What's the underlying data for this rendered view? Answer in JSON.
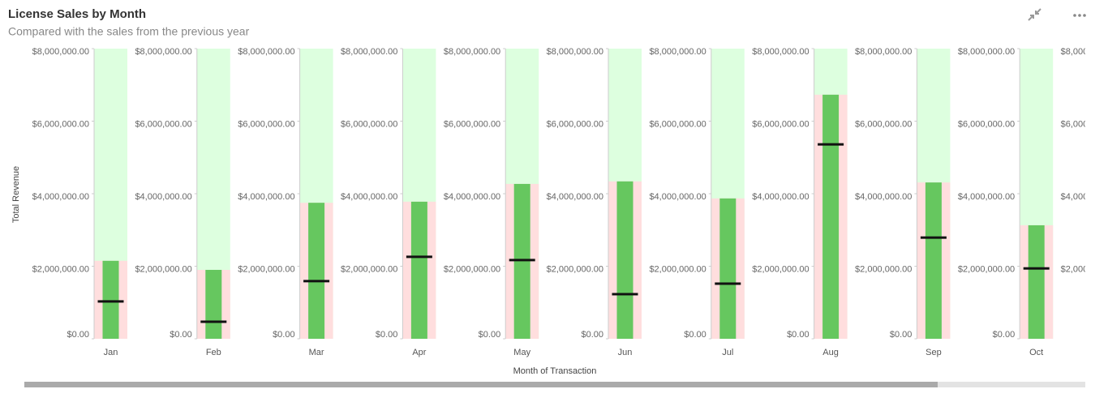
{
  "chart_data": {
    "type": "bullet",
    "title": "License Sales by Month",
    "subtitle": "Compared with the sales from the previous year",
    "x_label": "Month of Transaction",
    "y_label": "Total Revenue",
    "categories": [
      "Jan",
      "Feb",
      "Mar",
      "Apr",
      "May",
      "Jun",
      "Jul",
      "Aug",
      "Sep",
      "Oct"
    ],
    "values": [
      2150000,
      1900000,
      3750000,
      3780000,
      4270000,
      4340000,
      3870000,
      6730000,
      4310000,
      3130000
    ],
    "targets": [
      1030000,
      470000,
      1590000,
      2260000,
      2170000,
      1230000,
      1520000,
      5360000,
      2790000,
      1940000
    ],
    "color": "#66c75f",
    "band_color": "#ffdede",
    "background_color": "#ddffdf",
    "marker_color": "#111111",
    "ylim": [
      0,
      8000000
    ],
    "yticks": [
      {
        "value": 0,
        "label": "$0.00"
      },
      {
        "value": 2000000,
        "label": "$2,000,000.00"
      },
      {
        "value": 4000000,
        "label": "$4,000,000.00"
      },
      {
        "value": 6000000,
        "label": "$6,000,000.00"
      },
      {
        "value": 8000000,
        "label": "$8,000,000.00"
      }
    ]
  }
}
